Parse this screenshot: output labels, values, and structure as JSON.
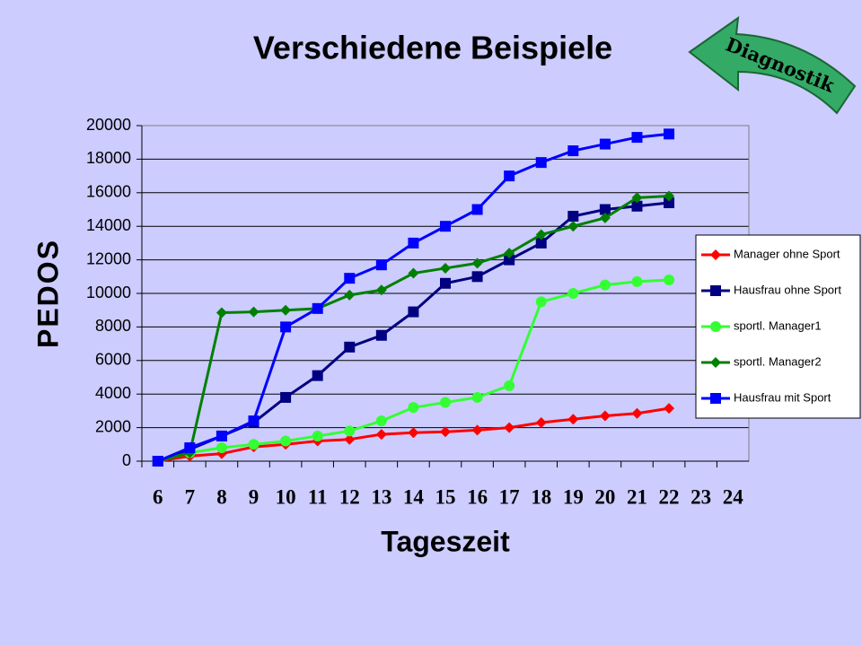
{
  "button": {
    "label": "Diagnostik"
  },
  "chart_data": {
    "type": "line",
    "title": "Verschiedene Beispiele",
    "x_label": "Tageszeit",
    "y_label": "PEDOS",
    "categories": [
      "6",
      "7",
      "8",
      "9",
      "10",
      "11",
      "12",
      "13",
      "14",
      "15",
      "16",
      "17",
      "18",
      "19",
      "20",
      "21",
      "22",
      "23",
      "24"
    ],
    "ylim": [
      0,
      20000
    ],
    "yticks": [
      0,
      2000,
      4000,
      6000,
      8000,
      10000,
      12000,
      14000,
      16000,
      18000,
      20000
    ],
    "grid": true,
    "legend": "right",
    "series": [
      {
        "name": "Manager ohne Sport",
        "color": "#ff0000",
        "marker": "diamond",
        "values": [
          0,
          300,
          450,
          850,
          1000,
          1200,
          1300,
          1600,
          1700,
          1750,
          1850,
          2000,
          2300,
          2500,
          2700,
          2850,
          3150,
          null,
          null
        ]
      },
      {
        "name": "Hausfrau ohne Sport",
        "color": "#000080",
        "marker": "square",
        "values": [
          0,
          700,
          1500,
          2300,
          3800,
          5100,
          6800,
          7500,
          8900,
          10600,
          11000,
          12000,
          13000,
          14600,
          15000,
          15200,
          15400,
          null,
          null
        ]
      },
      {
        "name": "sportl. Manager1",
        "color": "#33ff33",
        "marker": "circle",
        "values": [
          0,
          500,
          800,
          1000,
          1200,
          1500,
          1800,
          2400,
          3200,
          3500,
          3800,
          4500,
          9500,
          10000,
          10500,
          10700,
          10800,
          null,
          null
        ]
      },
      {
        "name": "sportl. Manager2",
        "color": "#008000",
        "marker": "diamond",
        "values": [
          0,
          500,
          8850,
          8900,
          9000,
          9100,
          9900,
          10200,
          11200,
          11500,
          11800,
          12400,
          13500,
          14000,
          14500,
          15700,
          15800,
          null,
          null
        ]
      },
      {
        "name": "Hausfrau mit Sport",
        "color": "#0000ff",
        "marker": "square",
        "values": [
          0,
          800,
          1500,
          2400,
          8000,
          9100,
          10900,
          11700,
          13000,
          14000,
          15000,
          17000,
          17800,
          18500,
          18900,
          19300,
          19500,
          null,
          null
        ]
      }
    ]
  }
}
